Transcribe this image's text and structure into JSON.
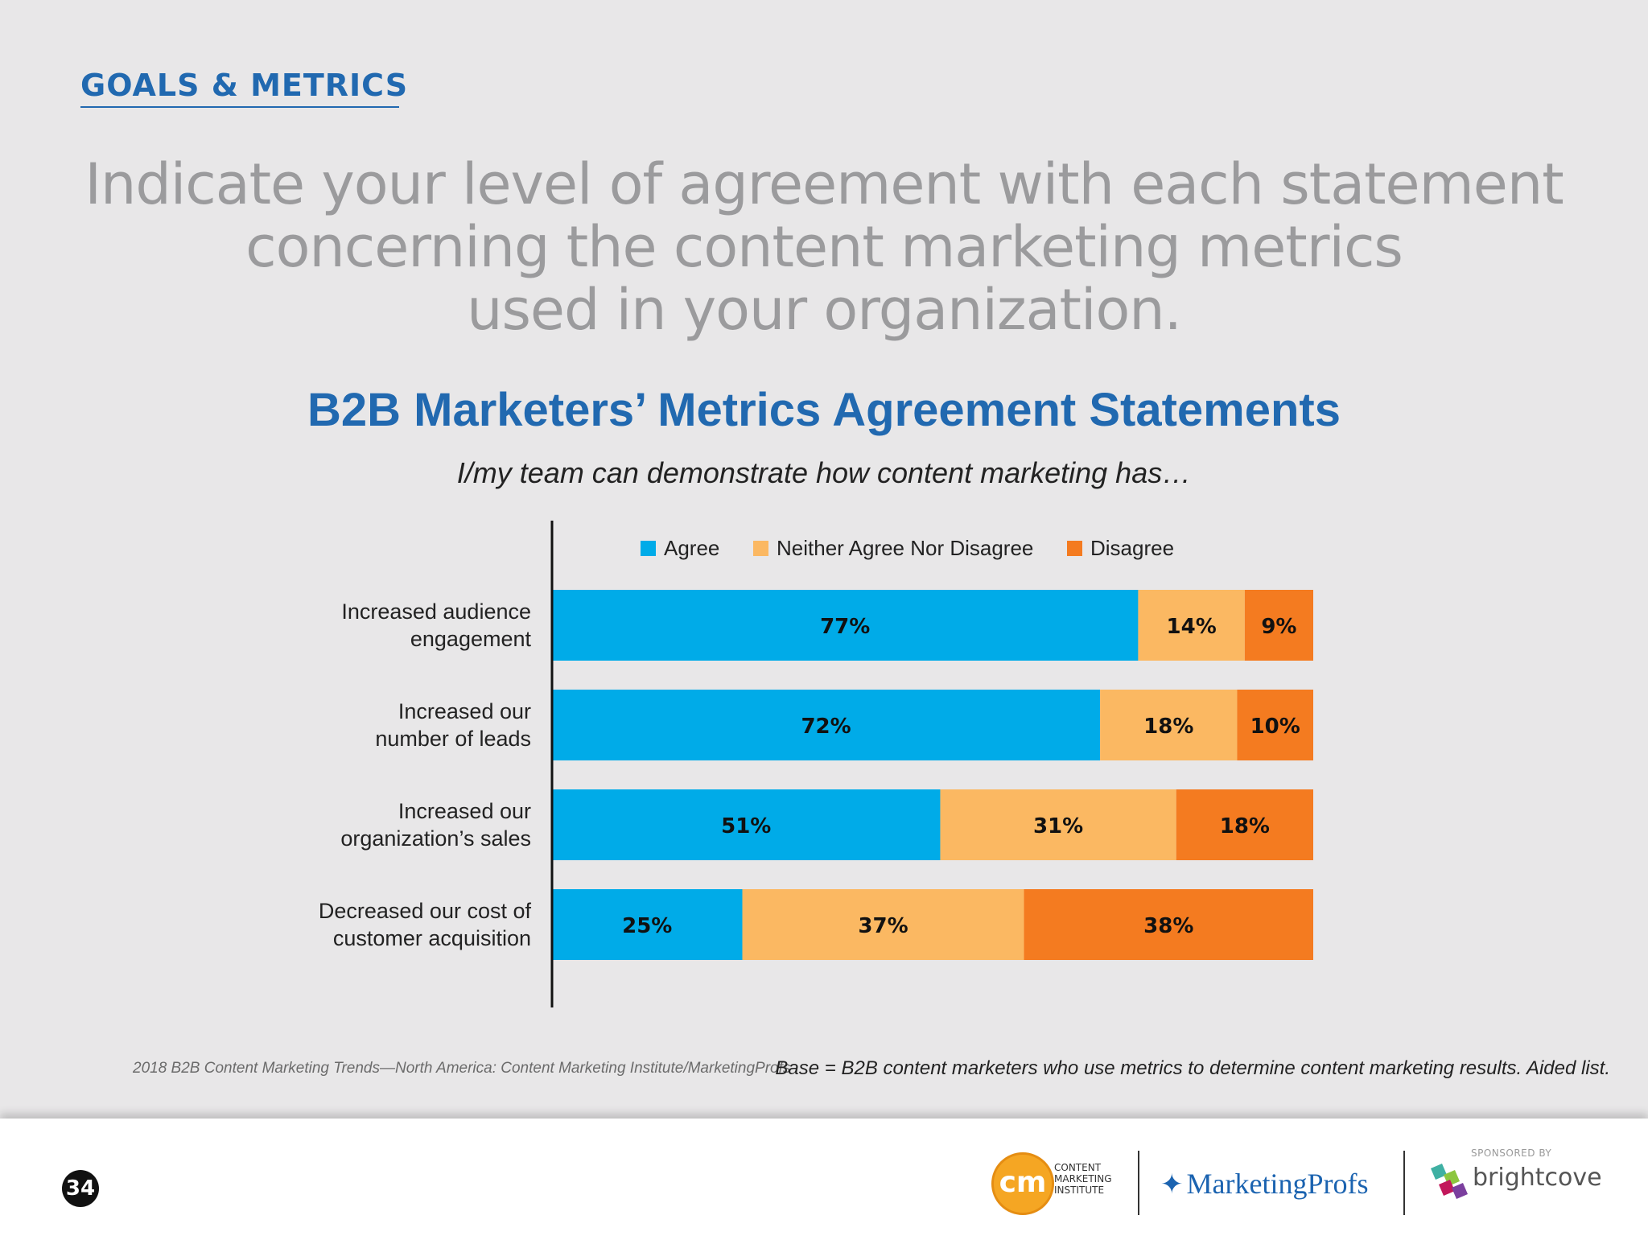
{
  "section": {
    "label": "GOALS & METRICS"
  },
  "question": {
    "lines": [
      "Indicate your level of agreement with each statement",
      "concerning the content marketing metrics",
      "used in your organization."
    ]
  },
  "colors": {
    "accent_blue": "#2169b0",
    "agree": "#00abe8",
    "neither": "#fbb862",
    "disagree": "#f47b20"
  },
  "chart_data": {
    "type": "bar",
    "orientation": "horizontal",
    "stacked": true,
    "percent": true,
    "title": "B2B Marketers’ Metrics Agreement Statements",
    "subtitle": "I/my team can demonstrate how content marketing has…",
    "categories": [
      [
        "Increased audience",
        "engagement"
      ],
      [
        "Increased our",
        "number of leads"
      ],
      [
        "Increased our",
        "organization’s sales"
      ],
      [
        "Decreased our cost of",
        "customer acquisition"
      ]
    ],
    "series": [
      {
        "name": "Agree",
        "color": "#00abe8",
        "values": [
          77,
          72,
          51,
          25
        ]
      },
      {
        "name": "Neither Agree Nor Disagree",
        "color": "#fbb862",
        "values": [
          14,
          18,
          31,
          37
        ]
      },
      {
        "name": "Disagree",
        "color": "#f47b20",
        "values": [
          9,
          10,
          18,
          38
        ]
      }
    ],
    "value_suffix": "%",
    "xlim": [
      0,
      100
    ],
    "legend_position": "top",
    "grid": false
  },
  "footer": {
    "source": "2018 B2B Content Marketing Trends—North America: Content Marketing Institute/MarketingProfs",
    "base_note": "Base = B2B content marketers who use metrics to determine content marketing results. Aided list.",
    "page_number": "34",
    "cmi_mark": "cm",
    "cmi_text": "CONTENT\nMARKETING\nINSTITUTE",
    "marketingprofs": "MarketingProfs",
    "sponsored_by": "SPONSORED BY",
    "brightcove": "brightcove"
  }
}
